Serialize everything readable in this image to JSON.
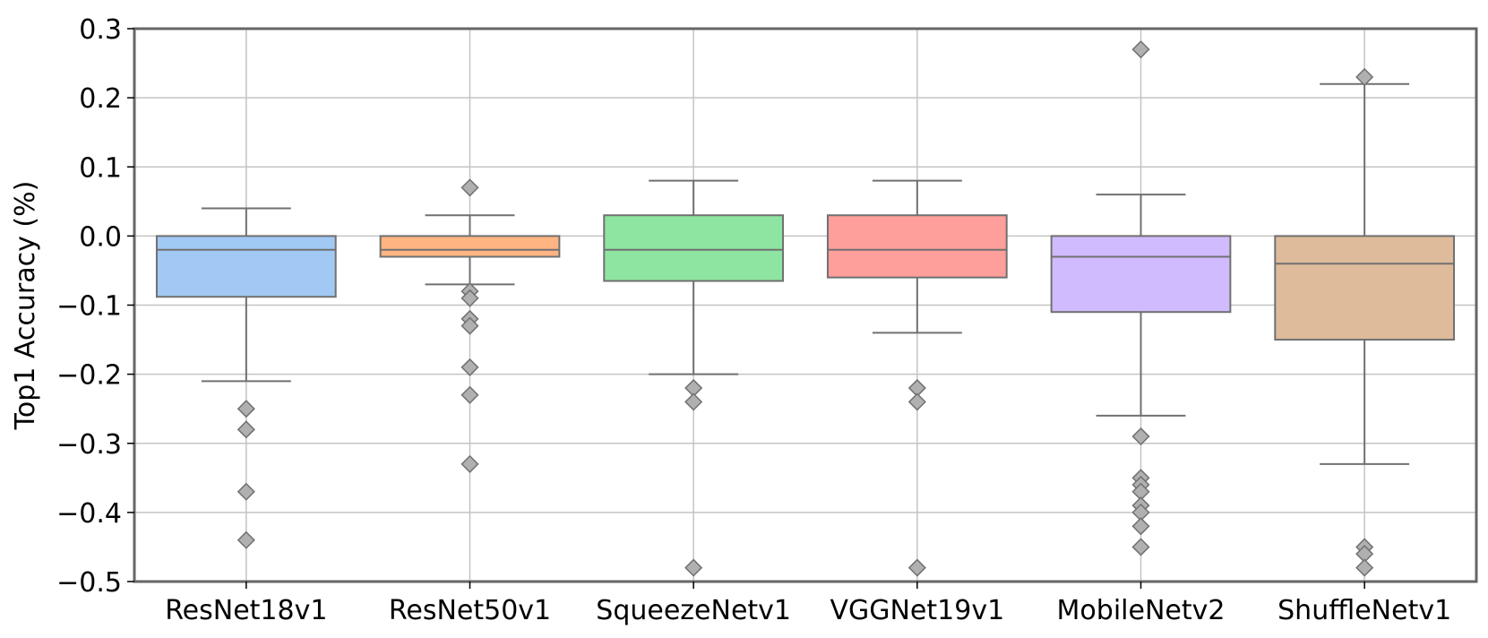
{
  "chart_data": {
    "type": "box",
    "title": "",
    "xlabel": "",
    "ylabel": "Top1 Accuracy (%)",
    "ylim": [
      -0.5,
      0.3
    ],
    "yticks": [
      0.3,
      0.2,
      0.1,
      0.0,
      -0.1,
      -0.2,
      -0.3,
      -0.4,
      -0.5
    ],
    "ytick_labels": [
      "0.3",
      "0.2",
      "0.1",
      "0.0",
      "−0.1",
      "−0.2",
      "−0.3",
      "−0.4",
      "−0.5"
    ],
    "grid": true,
    "categories": [
      "ResNet18v1",
      "ResNet50v1",
      "SqueezeNetv1",
      "VGGNet19v1",
      "MobileNetv2",
      "ShuffleNetv1"
    ],
    "boxes": [
      {
        "label": "ResNet18v1",
        "color": "#a1c9f4",
        "whisker_low": -0.21,
        "q1": -0.088,
        "median": -0.02,
        "q3": 0.0,
        "whisker_high": 0.04,
        "outliers": [
          -0.25,
          -0.28,
          -0.37,
          -0.44
        ]
      },
      {
        "label": "ResNet50v1",
        "color": "#ffb482",
        "whisker_low": -0.07,
        "q1": -0.03,
        "median": -0.02,
        "q3": 0.0,
        "whisker_high": 0.03,
        "outliers": [
          0.07,
          -0.08,
          -0.09,
          -0.12,
          -0.13,
          -0.19,
          -0.23,
          -0.33
        ]
      },
      {
        "label": "SqueezeNetv1",
        "color": "#8de5a1",
        "whisker_low": -0.2,
        "q1": -0.065,
        "median": -0.02,
        "q3": 0.03,
        "whisker_high": 0.08,
        "outliers": [
          -0.22,
          -0.24,
          -0.48
        ]
      },
      {
        "label": "VGGNet19v1",
        "color": "#ff9f9b",
        "whisker_low": -0.14,
        "q1": -0.06,
        "median": -0.02,
        "q3": 0.03,
        "whisker_high": 0.08,
        "outliers": [
          -0.22,
          -0.24,
          -0.48
        ]
      },
      {
        "label": "MobileNetv2",
        "color": "#d0bbff",
        "whisker_low": -0.26,
        "q1": -0.11,
        "median": -0.03,
        "q3": 0.0,
        "whisker_high": 0.06,
        "outliers": [
          0.27,
          -0.29,
          -0.35,
          -0.36,
          -0.37,
          -0.39,
          -0.4,
          -0.42,
          -0.45
        ]
      },
      {
        "label": "ShuffleNetv1",
        "color": "#debb9b",
        "whisker_low": -0.33,
        "q1": -0.15,
        "median": -0.04,
        "q3": 0.0,
        "whisker_high": 0.22,
        "outliers": [
          0.23,
          -0.45,
          -0.46,
          -0.48
        ]
      }
    ],
    "colors": {
      "box_edge": "#707070",
      "outlier_fill": "#b0b0b0",
      "grid": "#c4c4c4",
      "frame": "#666666"
    }
  }
}
